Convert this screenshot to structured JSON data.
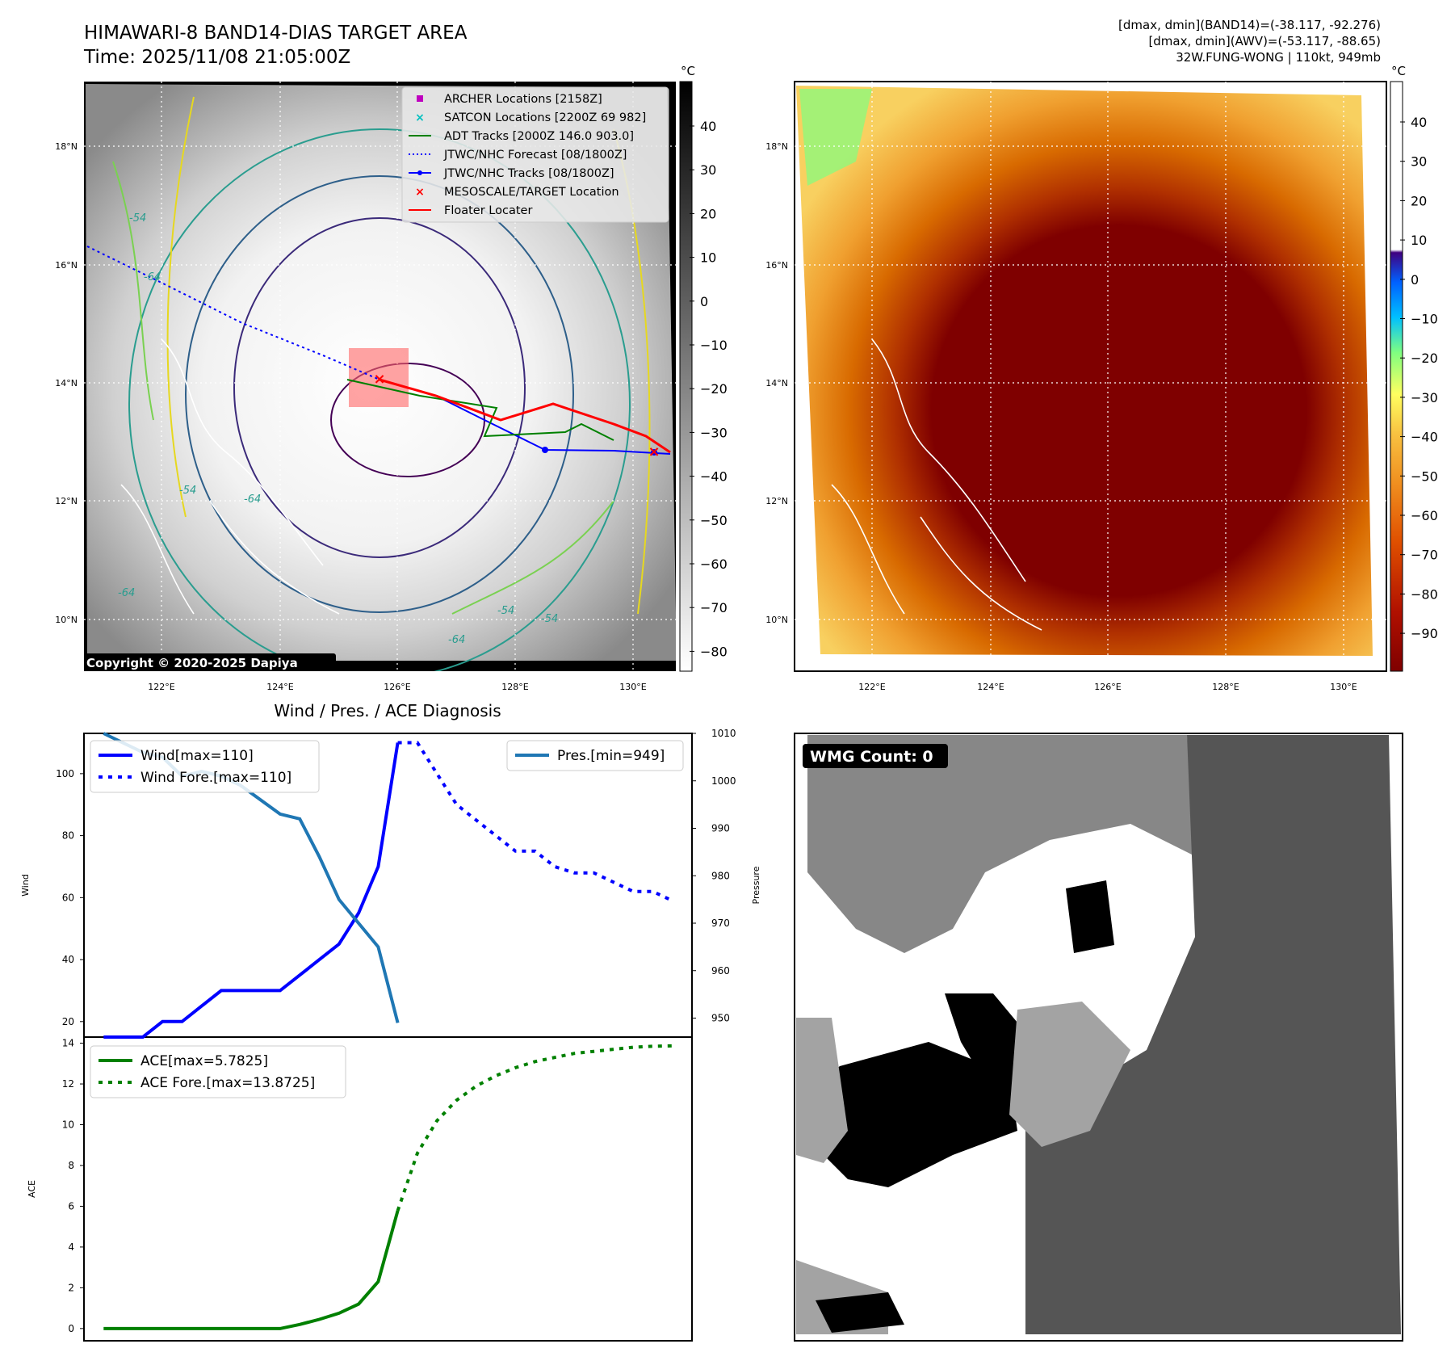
{
  "header": {
    "title_line1": "HIMAWARI-8 BAND14-DIAS TARGET AREA",
    "title_line2": "Time: 2025/11/08 21:05:00Z",
    "right_line1": "[dmax, dmin](BAND14)=(-38.117, -92.276)",
    "right_line2": "[dmax, dmin](AWV)=(-53.117, -88.65)",
    "right_line3": "32W.FUNG-WONG | 110kt, 949mb"
  },
  "map_panel": {
    "lat_labels": [
      "18°N",
      "16°N",
      "14°N",
      "12°N",
      "10°N"
    ],
    "lon_labels": [
      "122°E",
      "124°E",
      "126°E",
      "128°E",
      "130°E"
    ],
    "copyright": "Copyright © 2020-2025 Dapiya",
    "contour_labels": [
      "-54",
      "-64",
      "-54",
      "-64",
      "-64",
      "-54",
      "-54",
      "-64"
    ],
    "legend": [
      {
        "label": "ARCHER Locations [2158Z]",
        "color": "#bf00bf",
        "marker": "square"
      },
      {
        "label": "SATCON Locations [2200Z 69 982]",
        "color": "#00bfbf",
        "marker": "x"
      },
      {
        "label": "ADT Tracks [2000Z 146.0 903.0]",
        "color": "#008000",
        "marker": "line"
      },
      {
        "label": "JTWC/NHC Forecast [08/1800Z]",
        "color": "#0000ff",
        "marker": "dotted"
      },
      {
        "label": "JTWC/NHC Tracks [08/1800Z]",
        "color": "#0000ff",
        "marker": "line-dot"
      },
      {
        "label": "MESOSCALE/TARGET Location",
        "color": "#ff0000",
        "marker": "x"
      },
      {
        "label": "Floater Locater",
        "color": "#ff0000",
        "marker": "line"
      }
    ],
    "colorbar": {
      "unit": "°C",
      "ticks": [
        "40",
        "30",
        "20",
        "10",
        "0",
        "−10",
        "−20",
        "−30",
        "−40",
        "−50",
        "−60",
        "−70",
        "−80"
      ]
    }
  },
  "ir_panel": {
    "lat_labels": [
      "18°N",
      "16°N",
      "14°N",
      "12°N",
      "10°N"
    ],
    "lon_labels": [
      "122°E",
      "124°E",
      "126°E",
      "128°E",
      "130°E"
    ],
    "colorbar": {
      "unit": "°C",
      "ticks": [
        "40",
        "30",
        "20",
        "10",
        "0",
        "−10",
        "−20",
        "−30",
        "−40",
        "−50",
        "−60",
        "−70",
        "−80",
        "−90"
      ]
    }
  },
  "wmg_panel": {
    "badge": "WMG Count: 0"
  },
  "chart_data": [
    {
      "type": "line",
      "title": "Wind / Pres. / ACE Diagnosis",
      "xlabel": "",
      "ylabel": "Wind",
      "ylabel_right": "Pressure",
      "ylim": [
        15,
        113
      ],
      "ylim_right": [
        946,
        1010
      ],
      "yticks": [
        20,
        40,
        60,
        80,
        100
      ],
      "yticks_right": [
        950,
        960,
        970,
        980,
        990,
        1000,
        1010
      ],
      "x": [
        0,
        1,
        2,
        3,
        4,
        5,
        6,
        7,
        8,
        9,
        10,
        11,
        12,
        13,
        14,
        15,
        16,
        17,
        18,
        19,
        20,
        21,
        22,
        23,
        24,
        25,
        26,
        27,
        28,
        29
      ],
      "series": [
        {
          "name": "Wind[max=110]",
          "color": "#0000ff",
          "style": "solid",
          "axis": "left",
          "x": [
            0,
            1,
            2,
            3,
            4,
            5,
            6,
            7,
            8,
            9,
            10,
            11,
            12,
            13,
            14,
            15
          ],
          "values": [
            15,
            15,
            15,
            20,
            20,
            25,
            30,
            30,
            30,
            30,
            35,
            40,
            45,
            55,
            70,
            110
          ]
        },
        {
          "name": "Wind Fore.[max=110]",
          "color": "#0000ff",
          "style": "dotted",
          "axis": "left",
          "x": [
            15,
            16,
            17,
            18,
            19,
            20,
            21,
            22,
            23,
            24,
            25,
            26,
            27,
            28,
            29
          ],
          "values": [
            110,
            110,
            100,
            90,
            85,
            80,
            75,
            75,
            70,
            68,
            68,
            65,
            62,
            62,
            59
          ]
        },
        {
          "name": "Pres.[min=949]",
          "color": "#1f77b4",
          "style": "solid",
          "axis": "right",
          "x": [
            0,
            1,
            2,
            3,
            4,
            5,
            6,
            7,
            8,
            9,
            10,
            11,
            12,
            13,
            14,
            15
          ],
          "values": [
            1010,
            1008,
            1006,
            1005,
            1001,
            1002,
            1001,
            999,
            996,
            993,
            992,
            984,
            975,
            970,
            965,
            949
          ]
        }
      ]
    },
    {
      "type": "line",
      "title": "",
      "xlabel": "",
      "ylabel": "ACE",
      "ylim": [
        -0.6,
        14.3
      ],
      "yticks": [
        0,
        2,
        4,
        6,
        8,
        10,
        12,
        14
      ],
      "series": [
        {
          "name": "ACE[max=5.7825]",
          "color": "#008000",
          "style": "solid",
          "x": [
            0,
            1,
            2,
            3,
            4,
            5,
            6,
            7,
            8,
            9,
            10,
            11,
            12,
            13,
            14,
            15
          ],
          "values": [
            0,
            0,
            0,
            0,
            0,
            0,
            0,
            0,
            0,
            0,
            0.2,
            0.45,
            0.75,
            1.2,
            2.3,
            5.7825
          ]
        },
        {
          "name": "ACE Fore.[max=13.8725]",
          "color": "#008000",
          "style": "dotted",
          "x": [
            15,
            16,
            17,
            18,
            19,
            20,
            21,
            22,
            23,
            24,
            25,
            26,
            27,
            28,
            29
          ],
          "values": [
            5.7825,
            8.6,
            10.2,
            11.2,
            11.9,
            12.4,
            12.8,
            13.1,
            13.3,
            13.5,
            13.6,
            13.7,
            13.8,
            13.85,
            13.8725
          ]
        }
      ]
    }
  ]
}
